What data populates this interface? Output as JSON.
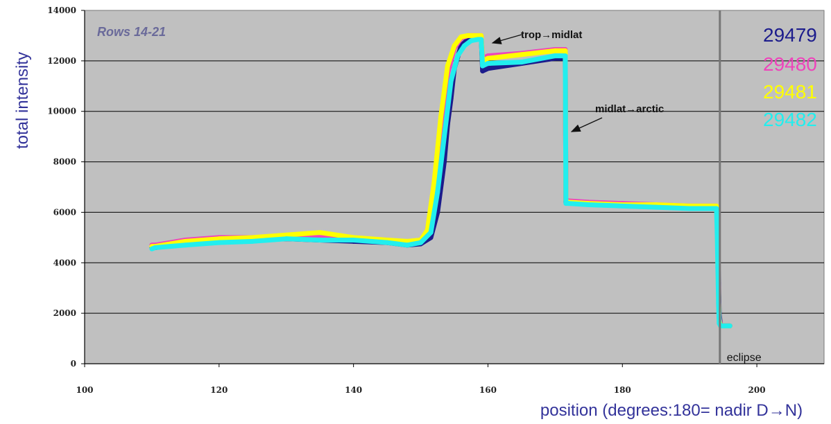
{
  "chart_data": {
    "type": "scatter",
    "xlabel": "position (degrees:180= nadir D→N)",
    "ylabel": "total intensity",
    "xlim": [
      100,
      210
    ],
    "ylim": [
      0,
      14000
    ],
    "x_ticks": [
      "100",
      "120",
      "140",
      "160",
      "180",
      "200"
    ],
    "y_ticks": [
      "0",
      "2000",
      "4000",
      "6000",
      "8000",
      "10000",
      "12000",
      "14000"
    ],
    "x_tick_values": [
      100,
      120,
      140,
      160,
      180,
      200
    ],
    "y_tick_values": [
      0,
      2000,
      4000,
      6000,
      8000,
      10000,
      12000,
      14000
    ],
    "grid": "horizontal",
    "plot_background": "#c0c0c0",
    "legend_placement": "top-right",
    "series": [
      {
        "name": "29479",
        "color": "#1c1c8c",
        "x": [
          110,
          110.5,
          115,
          120,
          125,
          130,
          135,
          140,
          145,
          148,
          150,
          151.5,
          152.5,
          153.5,
          154,
          154.5,
          155,
          156,
          157,
          158,
          158.5,
          159,
          159.2,
          160,
          165,
          170,
          171.5,
          171.6,
          172,
          175,
          180,
          185,
          190,
          194,
          194.1,
          194.2,
          194.3,
          194.4,
          194.6,
          195,
          196
        ],
        "y": [
          4600,
          4600,
          4750,
          4850,
          4900,
          4950,
          4900,
          4850,
          4800,
          4700,
          4750,
          5000,
          6000,
          8000,
          9500,
          10500,
          11700,
          12600,
          12850,
          12950,
          12950,
          12950,
          11600,
          11700,
          11900,
          12100,
          12100,
          6400,
          6400,
          6350,
          6300,
          6250,
          6200,
          6200,
          5800,
          4800,
          3200,
          2000,
          1500,
          1500,
          1500
        ]
      },
      {
        "name": "29480",
        "color": "#ee44bb",
        "x": [
          110,
          110.5,
          115,
          120,
          125,
          130,
          135,
          140,
          145,
          148,
          150,
          151,
          152,
          153,
          154,
          155,
          156,
          157,
          158,
          158.5,
          159,
          159.2,
          160,
          165,
          170,
          171.5,
          171.6,
          172,
          175,
          180,
          185,
          190,
          194,
          194.1,
          194.2,
          194.3,
          194.4,
          194.6,
          195,
          196
        ],
        "y": [
          4700,
          4700,
          4900,
          5000,
          5000,
          5050,
          5000,
          4950,
          4900,
          4800,
          4900,
          5300,
          7000,
          9500,
          11500,
          12500,
          12900,
          13000,
          13000,
          13000,
          13000,
          12100,
          12200,
          12300,
          12450,
          12450,
          6500,
          6450,
          6400,
          6350,
          6300,
          6250,
          6250,
          5600,
          4300,
          2800,
          1800,
          1500,
          1500,
          1500
        ]
      },
      {
        "name": "29481",
        "color": "#ffff00",
        "x": [
          110,
          110.5,
          115,
          120,
          125,
          130,
          135,
          140,
          145,
          148,
          150,
          151,
          152,
          153,
          154,
          155,
          156,
          157,
          158,
          158.5,
          159,
          159.2,
          160,
          165,
          170,
          171.5,
          171.6,
          172,
          175,
          180,
          185,
          190,
          194,
          194.1,
          194.2,
          194.3,
          194.4,
          194.6,
          195,
          196
        ],
        "y": [
          4650,
          4650,
          4850,
          4950,
          5000,
          5100,
          5200,
          5000,
          4900,
          4850,
          4900,
          5300,
          7200,
          9800,
          11800,
          12600,
          12950,
          13000,
          13000,
          13000,
          13000,
          12000,
          12100,
          12250,
          12400,
          12400,
          6450,
          6400,
          6350,
          6300,
          6300,
          6250,
          6250,
          5500,
          4000,
          2600,
          1700,
          1500,
          1500,
          1500
        ]
      },
      {
        "name": "29482",
        "color": "#22eeee",
        "x": [
          110,
          110.5,
          115,
          120,
          125,
          130,
          135,
          140,
          145,
          148,
          150,
          151.5,
          152.5,
          153.5,
          154.5,
          155.5,
          156.5,
          157.5,
          158.5,
          159,
          159.2,
          160,
          165,
          170,
          171.5,
          171.6,
          172,
          175,
          180,
          185,
          190,
          194,
          194.1,
          194.2,
          194.3,
          194.4,
          194.6,
          195,
          196
        ],
        "y": [
          4550,
          4600,
          4700,
          4800,
          4850,
          4950,
          4900,
          4900,
          4800,
          4700,
          4800,
          5200,
          6800,
          9000,
          11200,
          12200,
          12600,
          12800,
          12850,
          12850,
          11800,
          11900,
          11950,
          12200,
          12200,
          6350,
          6350,
          6300,
          6250,
          6200,
          6150,
          6150,
          5200,
          3800,
          2400,
          1600,
          1500,
          1500,
          1500
        ]
      }
    ],
    "annotations": {
      "rows_label": "Rows 14-21",
      "trop_midlat": "trop→midlat",
      "midlat_arctic": "midlat→arctic",
      "eclipse": "eclipse",
      "eclipse_x": 194.5
    }
  }
}
